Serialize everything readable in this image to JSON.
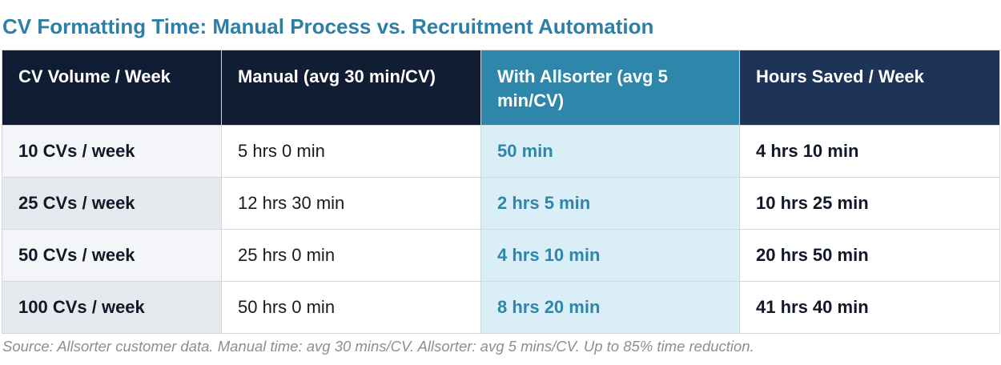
{
  "header": {
    "title": "CV Formatting Time: Manual Process vs. Recruitment Automation"
  },
  "table": {
    "columns": [
      "CV Volume / Week",
      "Manual (avg 30 min/CV)",
      "With Allsorter (avg 5 min/CV)",
      "Hours Saved / Week"
    ],
    "rows": [
      [
        "10 CVs / week",
        "5 hrs 0 min",
        "50 min",
        "4 hrs 10 min"
      ],
      [
        "25 CVs / week",
        "12 hrs 30 min",
        "2 hrs 5 min",
        "10 hrs 25 min"
      ],
      [
        "50 CVs / week",
        "25 hrs 0 min",
        "4 hrs 10 min",
        "20 hrs 50 min"
      ],
      [
        "100 CVs / week",
        "50 hrs 0 min",
        "8 hrs 20 min",
        "41 hrs 40 min"
      ]
    ]
  },
  "footer": {
    "source": "Source: Allsorter customer data. Manual time: avg 30 mins/CV. Allsorter: avg 5 mins/CV. Up to 85% time reduction."
  }
}
